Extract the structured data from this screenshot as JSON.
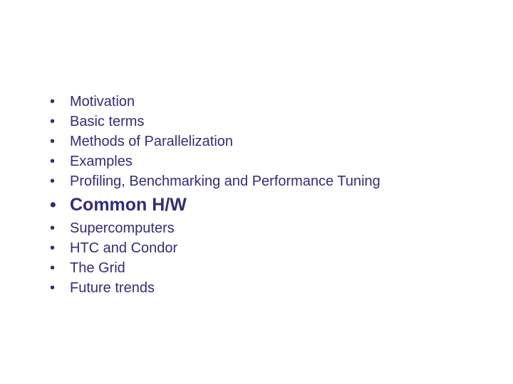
{
  "colors": {
    "text": "#322d76",
    "background": "#ffffff"
  },
  "typography": {
    "font_family": "Arial, Helvetica, sans-serif",
    "normal_size_pt": 20,
    "emphasized_size_pt": 25,
    "emphasized_weight": "bold"
  },
  "bullets": {
    "items": [
      {
        "label": "Motivation",
        "emphasized": false
      },
      {
        "label": "Basic terms",
        "emphasized": false
      },
      {
        "label": "Methods of Parallelization",
        "emphasized": false
      },
      {
        "label": "Examples",
        "emphasized": false
      },
      {
        "label": "Profiling, Benchmarking and Performance Tuning",
        "emphasized": false
      },
      {
        "label": "Common H/W",
        "emphasized": true
      },
      {
        "label": "Supercomputers",
        "emphasized": false
      },
      {
        "label": "HTC and Condor",
        "emphasized": false
      },
      {
        "label": "The Grid",
        "emphasized": false
      },
      {
        "label": "Future trends",
        "emphasized": false
      }
    ]
  }
}
